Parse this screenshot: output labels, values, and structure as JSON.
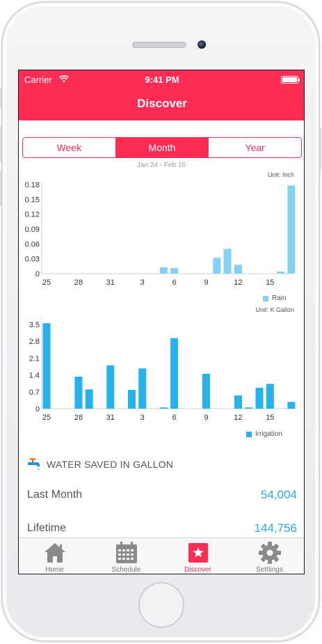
{
  "status_bar": {
    "carrier": "Carrier",
    "time": "9:41 PM"
  },
  "nav": {
    "title": "Discover"
  },
  "segments": [
    {
      "label": "Week",
      "active": false
    },
    {
      "label": "Month",
      "active": true
    },
    {
      "label": "Year",
      "active": false
    }
  ],
  "date_range": "Jan 24 - Feb 16",
  "colors": {
    "accent": "#ff2d55",
    "rain": "#85d1f5",
    "irrigation": "#26b2ef",
    "value": "#2aa8e6"
  },
  "chart_data": [
    {
      "type": "bar",
      "unit_label": "Unit: Inch",
      "x": [
        25,
        26,
        27,
        28,
        29,
        30,
        31,
        1,
        2,
        3,
        4,
        5,
        6,
        7,
        8,
        9,
        10,
        11,
        12,
        13,
        14,
        15,
        16,
        17
      ],
      "xticks": [
        "25",
        "28",
        "31",
        "3",
        "6",
        "9",
        "12",
        "15"
      ],
      "yticks": [
        "0",
        "0.03",
        "0.06",
        "0.09",
        "0.12",
        "0.15",
        "0.18"
      ],
      "ylim": [
        0,
        0.18
      ],
      "series": [
        {
          "name": "Rain",
          "values": [
            0,
            0,
            0,
            0,
            0,
            0,
            0,
            0,
            0,
            0,
            0,
            0.013,
            0.011,
            0,
            0,
            0,
            0.032,
            0.05,
            0.018,
            0,
            0,
            0,
            0.004,
            0.178
          ]
        }
      ],
      "legend": "bottom-right"
    },
    {
      "type": "bar",
      "unit_label": "Unit: K Gallon",
      "x": [
        25,
        26,
        27,
        28,
        29,
        30,
        31,
        1,
        2,
        3,
        4,
        5,
        6,
        7,
        8,
        9,
        10,
        11,
        12,
        13,
        14,
        15,
        16,
        17
      ],
      "xticks": [
        "25",
        "28",
        "31",
        "3",
        "6",
        "9",
        "12",
        "15"
      ],
      "yticks": [
        "0",
        "0.7",
        "1.4",
        "2.1",
        "2.8",
        "3.5"
      ],
      "ylim": [
        0,
        3.7
      ],
      "series": [
        {
          "name": "Irrigation",
          "values": [
            3.55,
            0,
            0,
            1.33,
            0.8,
            0,
            1.8,
            0,
            0.78,
            1.67,
            0,
            0.05,
            2.93,
            0,
            0,
            1.45,
            0,
            0,
            0.55,
            0.05,
            0.87,
            1.03,
            0,
            0.28
          ]
        }
      ],
      "legend": "bottom-right"
    }
  ],
  "water_saved": {
    "title": "WATER SAVED IN GALLON",
    "icon": "faucet-icon",
    "rows": [
      {
        "label": "Last Month",
        "value": "54,004"
      },
      {
        "label": "Lifetime",
        "value": "144,756"
      }
    ]
  },
  "tabs": [
    {
      "label": "Home",
      "icon": "home-icon",
      "active": false
    },
    {
      "label": "Schedule",
      "icon": "calendar-icon",
      "active": false
    },
    {
      "label": "Discover",
      "icon": "star-icon",
      "active": true
    },
    {
      "label": "Setttings",
      "icon": "gear-icon",
      "active": false
    }
  ]
}
